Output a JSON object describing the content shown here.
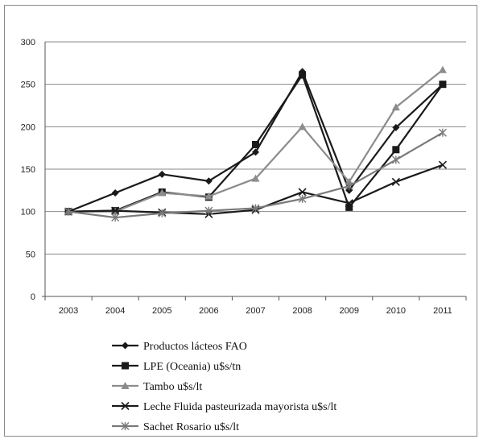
{
  "chart_data": {
    "type": "line",
    "categories": [
      "2003",
      "2004",
      "2005",
      "2006",
      "2007",
      "2008",
      "2009",
      "2010",
      "2011"
    ],
    "ylim": [
      0,
      300
    ],
    "yticks": [
      0,
      50,
      100,
      150,
      200,
      250,
      300
    ],
    "grid": "horizontal",
    "legend_position": "bottom",
    "series": [
      {
        "name": "Productos lácteos FAO",
        "color": "#1a1a1a",
        "marker": "diamond",
        "values": [
          100,
          122,
          144,
          136,
          170,
          265,
          125,
          199,
          250
        ]
      },
      {
        "name": "LPE (Oceania) u$s/tn",
        "color": "#1a1a1a",
        "marker": "square",
        "values": [
          100,
          101,
          123,
          117,
          179,
          261,
          105,
          173,
          250
        ]
      },
      {
        "name": "Tambo u$s/lt",
        "color": "#8c8c8c",
        "marker": "triangle",
        "values": [
          100,
          100,
          122,
          118,
          139,
          200,
          135,
          223,
          267
        ]
      },
      {
        "name": "Leche Fluida pasteurizada mayorista u$s/lt",
        "color": "#1a1a1a",
        "marker": "x",
        "values": [
          100,
          101,
          99,
          97,
          102,
          123,
          110,
          135,
          155
        ]
      },
      {
        "name": "Sachet Rosario u$s/lt",
        "color": "#7a7a7a",
        "marker": "star",
        "values": [
          100,
          93,
          98,
          101,
          104,
          115,
          130,
          161,
          193
        ]
      }
    ]
  }
}
